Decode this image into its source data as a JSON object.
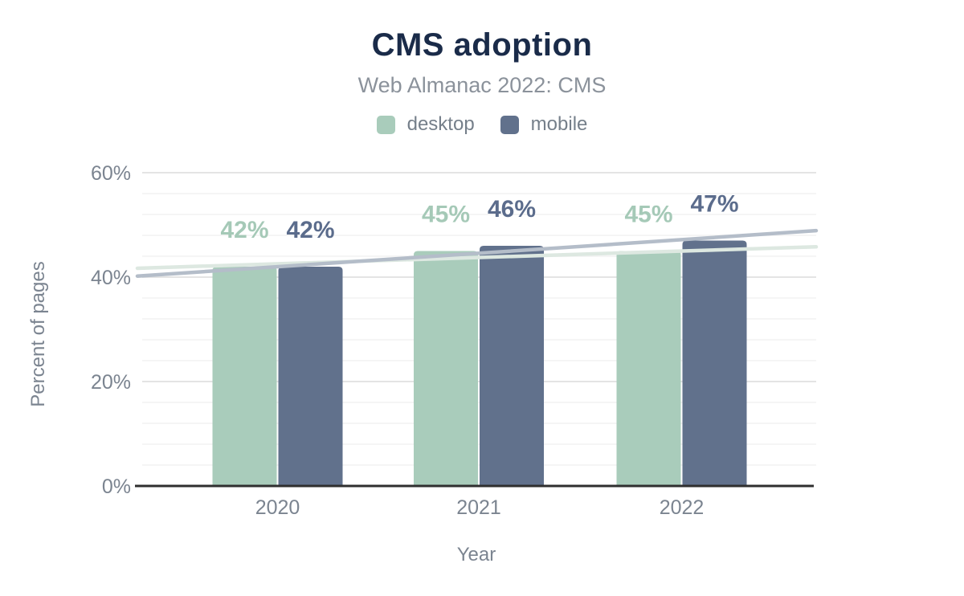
{
  "chart_data": {
    "type": "bar",
    "title": "CMS adoption",
    "subtitle": "Web Almanac 2022: CMS",
    "xlabel": "Year",
    "ylabel": "Percent of pages",
    "categories": [
      "2020",
      "2021",
      "2022"
    ],
    "series": [
      {
        "name": "desktop",
        "color": "#a9ccbb",
        "label_color": "#a5c9b7",
        "trend_color": "#dde8e1",
        "values": [
          42,
          45,
          45
        ],
        "trendline": {
          "start_pct": 41.7,
          "end_pct": 45.8
        }
      },
      {
        "name": "mobile",
        "color": "#61718c",
        "label_color": "#5b6c8c",
        "trend_color": "#b4bdc9",
        "values": [
          42,
          46,
          47
        ],
        "trendline": {
          "start_pct": 40.2,
          "end_pct": 48.9
        }
      }
    ],
    "value_suffix": "%",
    "ylim": [
      0,
      60
    ],
    "yticks": [
      0,
      20,
      40,
      60
    ],
    "ytick_labels": [
      "0%",
      "20%",
      "40%",
      "60%"
    ],
    "minor_grid_step_pct": 4,
    "grid": "on",
    "legend_position": "top",
    "colors": {
      "title_text": "#1a2b49",
      "subtitle_text": "#8b929b",
      "tick_text": "#7b8490",
      "axis_line": "#2f2f2f",
      "major_gridline": "#e4e4e4",
      "minor_gridline": "#f5f5f5"
    }
  }
}
